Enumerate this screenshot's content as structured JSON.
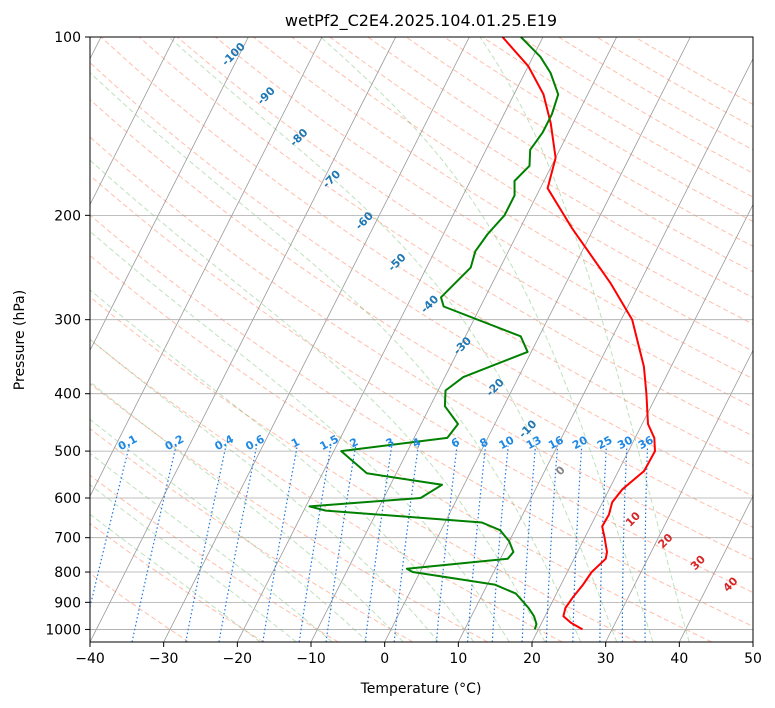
{
  "chart_data": {
    "type": "line",
    "title": "wetPf2_C2E4.2025.104.01.25.E19",
    "xlabel": "Temperature (°C)",
    "ylabel": "Pressure (hPa)",
    "xlim": [
      -40,
      50
    ],
    "ylim": [
      1050,
      100
    ],
    "y_scale": "log",
    "grid": true,
    "x_ticks": [
      -40,
      -30,
      -20,
      -10,
      0,
      10,
      20,
      30,
      40,
      50
    ],
    "x_tick_labels": [
      "−40",
      "−30",
      "−20",
      "−10",
      "0",
      "10",
      "20",
      "30",
      "40",
      "50"
    ],
    "y_ticks": [
      100,
      200,
      300,
      400,
      500,
      600,
      700,
      800,
      900,
      1000
    ],
    "y_tick_labels": [
      "100",
      "200",
      "300",
      "400",
      "500",
      "600",
      "700",
      "800",
      "900",
      "1000"
    ],
    "series": [
      {
        "name": "",
        "color": "#ff0000",
        "points": [
          [
            26.0,
            1000
          ],
          [
            24.0,
            975
          ],
          [
            22.5,
            950
          ],
          [
            22.2,
            920
          ],
          [
            22.5,
            880
          ],
          [
            23.0,
            840
          ],
          [
            23.3,
            800
          ],
          [
            24.3,
            760
          ],
          [
            24.0,
            740
          ],
          [
            22.7,
            700
          ],
          [
            21.6,
            670
          ],
          [
            21.7,
            640
          ],
          [
            21.3,
            610
          ],
          [
            21.8,
            580
          ],
          [
            23.5,
            540
          ],
          [
            23.6,
            500
          ],
          [
            22.6,
            475
          ],
          [
            20.8,
            450
          ],
          [
            18.5,
            400
          ],
          [
            16.3,
            360
          ],
          [
            14.0,
            330
          ],
          [
            11.5,
            300
          ],
          [
            6.0,
            260
          ],
          [
            -3.0,
            210
          ],
          [
            -9.0,
            180
          ],
          [
            -10.0,
            160
          ],
          [
            -13.0,
            140
          ],
          [
            -16.0,
            125
          ],
          [
            -20.0,
            112
          ],
          [
            -25.5,
            100
          ]
        ]
      },
      {
        "name": "",
        "color": "#008000",
        "points": [
          [
            19.5,
            1000
          ],
          [
            19.4,
            980
          ],
          [
            18.5,
            950
          ],
          [
            17.2,
            920
          ],
          [
            14.5,
            870
          ],
          [
            11.0,
            840
          ],
          [
            -1.0,
            800
          ],
          [
            -2.0,
            790
          ],
          [
            11.0,
            760
          ],
          [
            11.3,
            740
          ],
          [
            10.0,
            710
          ],
          [
            8.0,
            680
          ],
          [
            5.0,
            660
          ],
          [
            -17.0,
            630
          ],
          [
            -19.5,
            620
          ],
          [
            -5.0,
            600
          ],
          [
            -3.0,
            570
          ],
          [
            -14.0,
            545
          ],
          [
            -19.0,
            500
          ],
          [
            -5.5,
            475
          ],
          [
            -5.0,
            450
          ],
          [
            -8.0,
            420
          ],
          [
            -9.0,
            395
          ],
          [
            -7.5,
            375
          ],
          [
            -0.5,
            340
          ],
          [
            -2.5,
            320
          ],
          [
            -15.0,
            285
          ],
          [
            -16.0,
            275
          ],
          [
            -14.0,
            245
          ],
          [
            -14.5,
            230
          ],
          [
            -14.0,
            215
          ],
          [
            -13.0,
            200
          ],
          [
            -13.0,
            185
          ],
          [
            -14.0,
            175
          ],
          [
            -13.0,
            165
          ],
          [
            -14.0,
            155
          ],
          [
            -13.5,
            145
          ],
          [
            -13.5,
            135
          ],
          [
            -14.0,
            125
          ],
          [
            -16.5,
            115
          ],
          [
            -19.0,
            108
          ],
          [
            -23.0,
            100
          ]
        ]
      }
    ],
    "dry_adiabat_labels": [],
    "moist_adiabat_labels": [
      "-100",
      "-90",
      "-80",
      "-70",
      "-60",
      "-50",
      "-40",
      "-30",
      "-20",
      "-10",
      "0",
      "10",
      "20",
      "30",
      "40"
    ],
    "mixing_ratio_labels": [
      "0.1",
      "0.2",
      "0.4",
      "0.6",
      "1",
      "1.5",
      "2",
      "3",
      "4",
      "6",
      "8",
      "10",
      "13",
      "16",
      "20",
      "25",
      "30",
      "36"
    ]
  }
}
